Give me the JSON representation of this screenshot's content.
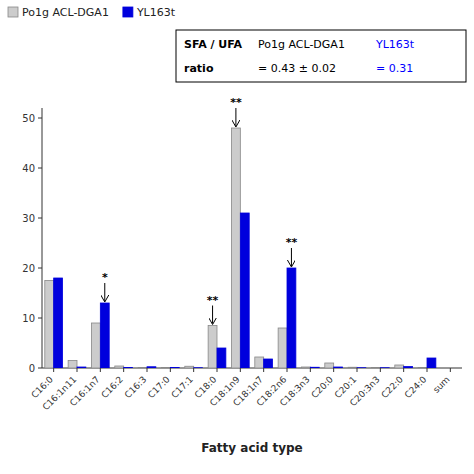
{
  "chart_data": {
    "type": "bar",
    "categories": [
      "C16:0",
      "C16:1n11",
      "C16:1n7",
      "C16:2",
      "C16:3",
      "C17:0",
      "C17:1",
      "C18:0",
      "C18:1n9",
      "C18:1n7",
      "C18:2n6",
      "C18:3n3",
      "C20:0",
      "C20:1",
      "C20:3n3",
      "C22:0",
      "C24:0",
      "sum"
    ],
    "series": [
      {
        "name": "Po1g ACL-DGA1",
        "color": "#cccccc",
        "values": [
          17.5,
          1.5,
          9.0,
          0.4,
          0.1,
          0.1,
          0.35,
          8.5,
          48.0,
          2.2,
          8.0,
          0.2,
          1.0,
          0.15,
          0.1,
          0.6,
          0.1,
          0.0
        ]
      },
      {
        "name": "YL163t",
        "color": "#0000dd",
        "values": [
          18.0,
          0.2,
          13.0,
          0.1,
          0.25,
          0.1,
          0.05,
          4.0,
          31.0,
          1.8,
          20.0,
          0.15,
          0.2,
          0.05,
          0.05,
          0.3,
          2.0,
          0.0
        ]
      }
    ],
    "xlabel": "Fatty acid type",
    "ylim": [
      0,
      52
    ],
    "yticks": [
      0,
      10,
      20,
      30,
      40,
      50
    ],
    "grid": false,
    "legend": "upper left",
    "annotations": [
      {
        "text": "*",
        "category": "C16:1n7",
        "series": "YL163t"
      },
      {
        "text": "**",
        "category": "C18:0",
        "series": "Po1g ACL-DGA1"
      },
      {
        "text": "**",
        "category": "C18:1n9",
        "series": "Po1g ACL-DGA1"
      },
      {
        "text": "**",
        "category": "C18:2n6",
        "series": "YL163t"
      }
    ],
    "ratio_box": {
      "labels": [
        "SFA / UFA",
        "ratio"
      ],
      "entries": [
        {
          "name": "Po1g ACL-DGA1",
          "text": "= 0.43 ± 0.02",
          "color": "black"
        },
        {
          "name": "YL163t",
          "text": "= 0.31",
          "color": "blue"
        }
      ]
    }
  }
}
